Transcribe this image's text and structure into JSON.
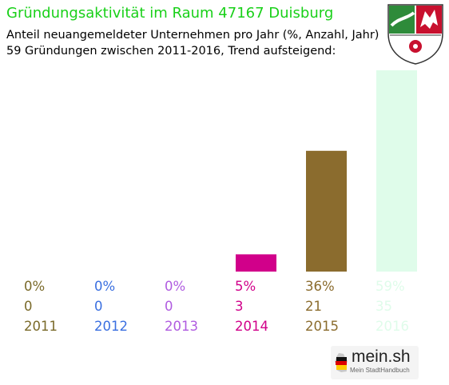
{
  "header": {
    "title": "Gründungsaktivität im Raum 47167 Duisburg",
    "subtitle_line1": "Anteil neuangemeldeter Unternehmen pro Jahr (%, Anzahl, Jahr)",
    "subtitle_line2": "59 Gründungen zwischen 2011-2016, Trend aufsteigend:"
  },
  "crest_icon": "nrw-coat-of-arms-icon",
  "logo": {
    "name": "mein.sh",
    "tagline": "Mein StadtHandbuch",
    "icon": "germany-map-icon"
  },
  "chart_data": {
    "type": "bar",
    "categories": [
      "2011",
      "2012",
      "2013",
      "2014",
      "2015",
      "2016"
    ],
    "values": [
      0,
      0,
      0,
      3,
      21,
      35
    ],
    "percent_labels": [
      "0%",
      "0%",
      "0%",
      "5%",
      "36%",
      "59%"
    ],
    "count_labels": [
      "0",
      "0",
      "0",
      "3",
      "21",
      "35"
    ],
    "colors": [
      "#7a6a2a",
      "#3a6fe0",
      "#b05ce0",
      "#d1008a",
      "#8b6c2e",
      "#dffcea"
    ],
    "ylim": [
      0,
      35
    ],
    "grid": false
  }
}
